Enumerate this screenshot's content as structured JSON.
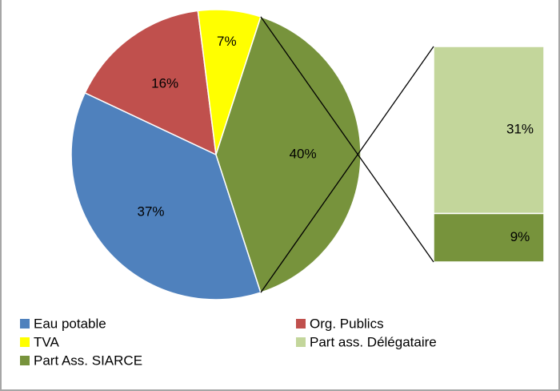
{
  "chart_data": {
    "type": "pie",
    "categories": [
      "Eau potable",
      "Org. Publics",
      "TVA",
      null
    ],
    "values": [
      37,
      16,
      7,
      40
    ],
    "value_labels": [
      "37%",
      "16%",
      "7%",
      "40%"
    ],
    "colors": [
      "#4f81bd",
      "#c0504d",
      "#ffff00",
      "#77933c"
    ],
    "breakout": {
      "categories": [
        "Part ass. Délégataire",
        "Part Ass. SIARCE"
      ],
      "values": [
        31,
        9
      ],
      "value_labels": [
        "31%",
        "9%"
      ],
      "colors": [
        "#c3d69b",
        "#77933c"
      ]
    }
  }
}
